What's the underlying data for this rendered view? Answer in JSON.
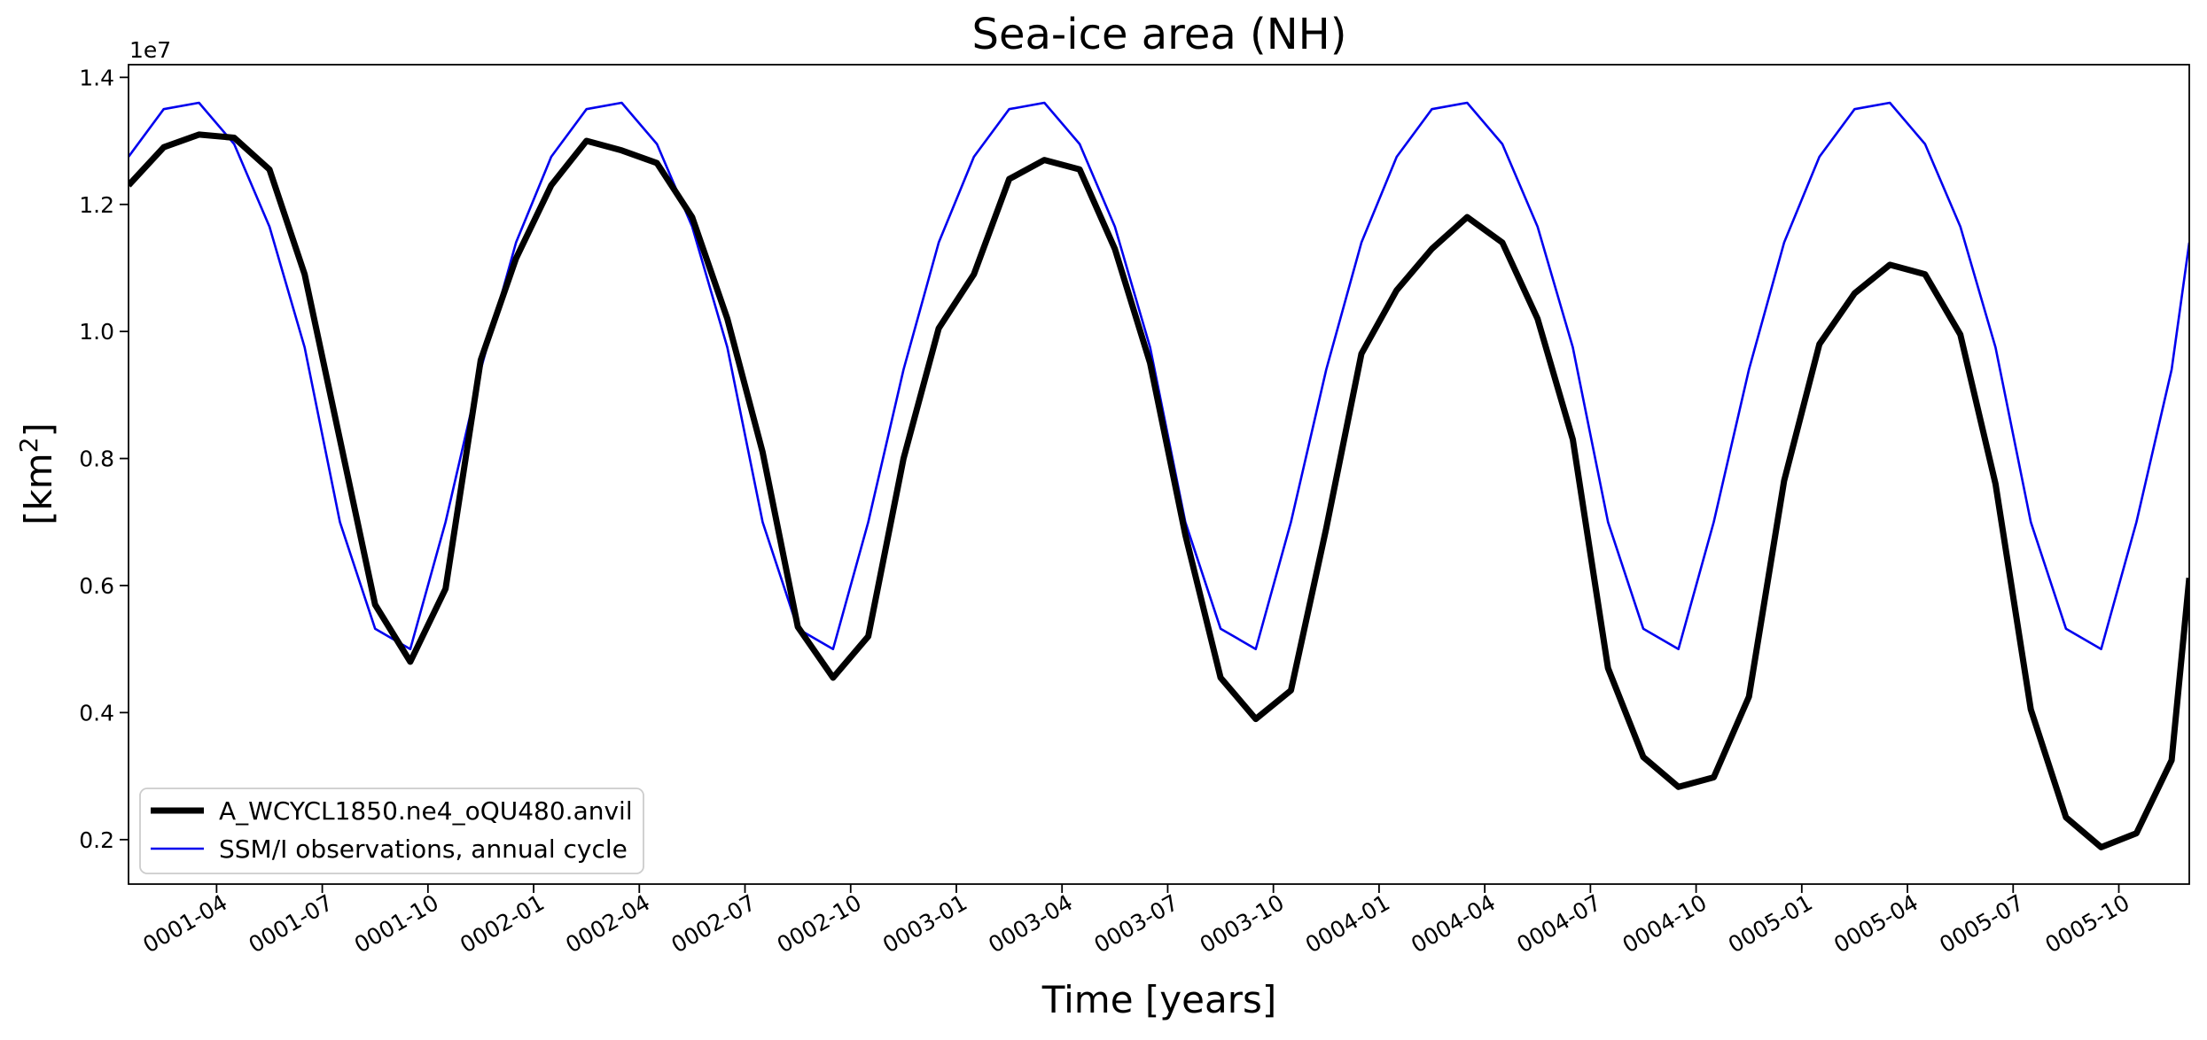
{
  "chart_data": {
    "type": "line",
    "title": "Sea-ice area (NH)",
    "xlabel": "Time [years]",
    "ylabel_main": "[km",
    "ylabel_sup": "2",
    "ylabel_end": "]",
    "y_offset_label": "1e7",
    "x_range_months": [
      1.0,
      59.5
    ],
    "ylim": [
      0.13,
      1.42
    ],
    "x_ticks": [
      {
        "month": 3.5,
        "label": "0001-04"
      },
      {
        "month": 6.5,
        "label": "0001-07"
      },
      {
        "month": 9.5,
        "label": "0001-10"
      },
      {
        "month": 12.5,
        "label": "0002-01"
      },
      {
        "month": 15.5,
        "label": "0002-04"
      },
      {
        "month": 18.5,
        "label": "0002-07"
      },
      {
        "month": 21.5,
        "label": "0002-10"
      },
      {
        "month": 24.5,
        "label": "0003-01"
      },
      {
        "month": 27.5,
        "label": "0003-04"
      },
      {
        "month": 30.5,
        "label": "0003-07"
      },
      {
        "month": 33.5,
        "label": "0003-10"
      },
      {
        "month": 36.5,
        "label": "0004-01"
      },
      {
        "month": 39.5,
        "label": "0004-04"
      },
      {
        "month": 42.5,
        "label": "0004-07"
      },
      {
        "month": 45.5,
        "label": "0004-10"
      },
      {
        "month": 48.5,
        "label": "0005-01"
      },
      {
        "month": 51.5,
        "label": "0005-04"
      },
      {
        "month": 54.5,
        "label": "0005-07"
      },
      {
        "month": 57.5,
        "label": "0005-10"
      }
    ],
    "y_ticks": [
      {
        "value": 0.2,
        "label": "0.2"
      },
      {
        "value": 0.4,
        "label": "0.4"
      },
      {
        "value": 0.6,
        "label": "0.6"
      },
      {
        "value": 0.8,
        "label": "0.8"
      },
      {
        "value": 1.0,
        "label": "1.0"
      },
      {
        "value": 1.2,
        "label": "1.2"
      },
      {
        "value": 1.4,
        "label": "1.4"
      }
    ],
    "series": [
      {
        "name": "A_WCYCL1850.ne4_oQU480.anvil",
        "color": "#000000",
        "width": 7,
        "x": [
          1.0,
          2.0,
          3.0,
          4.0,
          5.0,
          6.0,
          7.0,
          8.0,
          9.0,
          10.0,
          11.0,
          12.0,
          13.0,
          14.0,
          15.0,
          16.0,
          17.0,
          18.0,
          19.0,
          20.0,
          21.0,
          22.0,
          23.0,
          24.0,
          25.0,
          26.0,
          27.0,
          28.0,
          29.0,
          30.0,
          31.0,
          32.0,
          33.0,
          34.0,
          35.0,
          36.0,
          37.0,
          38.0,
          39.0,
          40.0,
          41.0,
          42.0,
          43.0,
          44.0,
          45.0,
          46.0,
          47.0,
          48.0,
          49.0,
          50.0,
          51.0,
          52.0,
          53.0,
          54.0,
          55.0,
          56.0,
          57.0,
          58.0,
          59.0,
          59.5
        ],
        "y": [
          1.23,
          1.29,
          1.31,
          1.305,
          1.255,
          1.09,
          0.83,
          0.57,
          0.48,
          0.595,
          0.955,
          1.115,
          1.23,
          1.3,
          1.285,
          1.265,
          1.18,
          1.02,
          0.81,
          0.535,
          0.455,
          0.52,
          0.8,
          1.005,
          1.09,
          1.24,
          1.27,
          1.255,
          1.13,
          0.95,
          0.68,
          0.455,
          0.39,
          0.435,
          0.69,
          0.965,
          1.065,
          1.13,
          1.18,
          1.14,
          1.02,
          0.83,
          0.47,
          0.33,
          0.283,
          0.298,
          0.425,
          0.765,
          0.98,
          1.06,
          1.105,
          1.09,
          0.995,
          0.76,
          0.405,
          0.235,
          0.188,
          0.21,
          0.325,
          0.612
        ]
      },
      {
        "name": "SSM/I observations, annual cycle",
        "color": "#0000ee",
        "width": 2.6,
        "x": [
          1.0,
          2.0,
          3.0,
          4.0,
          5.0,
          6.0,
          7.0,
          8.0,
          9.0,
          10.0,
          11.0,
          12.0,
          13.0,
          14.0,
          15.0,
          16.0,
          17.0,
          18.0,
          19.0,
          20.0,
          21.0,
          22.0,
          23.0,
          24.0,
          25.0,
          26.0,
          27.0,
          28.0,
          29.0,
          30.0,
          31.0,
          32.0,
          33.0,
          34.0,
          35.0,
          36.0,
          37.0,
          38.0,
          39.0,
          40.0,
          41.0,
          42.0,
          43.0,
          44.0,
          45.0,
          46.0,
          47.0,
          48.0,
          49.0,
          50.0,
          51.0,
          52.0,
          53.0,
          54.0,
          55.0,
          56.0,
          57.0,
          58.0,
          59.0,
          59.5
        ],
        "y": [
          1.275,
          1.35,
          1.36,
          1.295,
          1.165,
          0.975,
          0.7,
          0.532,
          0.5,
          0.7,
          0.94,
          1.14,
          1.275,
          1.35,
          1.36,
          1.295,
          1.165,
          0.975,
          0.7,
          0.532,
          0.5,
          0.7,
          0.94,
          1.14,
          1.275,
          1.35,
          1.36,
          1.295,
          1.165,
          0.975,
          0.7,
          0.532,
          0.5,
          0.7,
          0.94,
          1.14,
          1.275,
          1.35,
          1.36,
          1.295,
          1.165,
          0.975,
          0.7,
          0.532,
          0.5,
          0.7,
          0.94,
          1.14,
          1.275,
          1.35,
          1.36,
          1.295,
          1.165,
          0.975,
          0.7,
          0.532,
          0.5,
          0.7,
          0.94,
          1.14
        ]
      }
    ],
    "legend": {
      "location": "lower-left"
    }
  }
}
